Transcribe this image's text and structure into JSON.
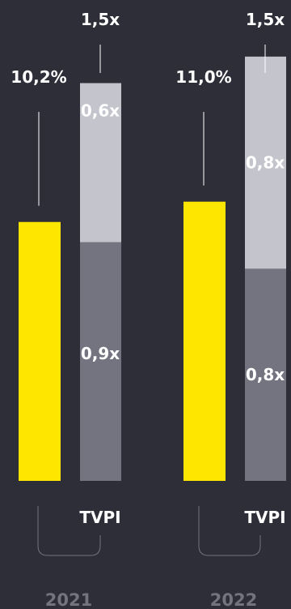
{
  "chart_data": {
    "type": "bar",
    "categories": [
      "2021",
      "2022"
    ],
    "series": [
      {
        "values": [
          10.2,
          11.0
        ],
        "labels": [
          "10,2%",
          "11,0%"
        ],
        "color": "#ffe600"
      },
      {
        "values": [
          0.9,
          0.8
        ],
        "labels": [
          "0,9x",
          "0,8x"
        ],
        "color": "#747480"
      },
      {
        "values": [
          0.6,
          0.8
        ],
        "labels": [
          "0,6x",
          "0,8x"
        ],
        "color": "#c4c4cd"
      }
    ],
    "totals": [
      "1,5x",
      "1,5x"
    ],
    "tvpi_label": "TVPI"
  }
}
